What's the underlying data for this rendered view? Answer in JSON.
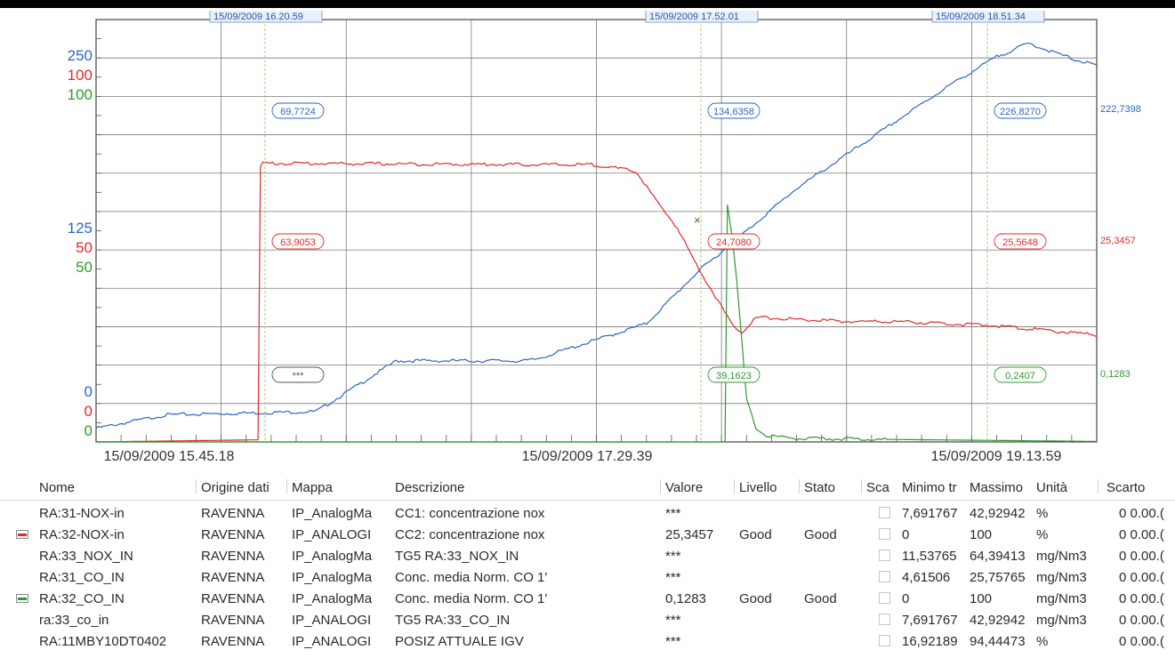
{
  "chart_data": {
    "type": "line",
    "title": "",
    "x_tick_labels": [
      "15/09/2009  15.45.18",
      "15/09/2009  17.29.39",
      "15/09/2009  19.13.59"
    ],
    "y_axes": [
      {
        "color": "#2a66c8",
        "top_label": "250",
        "mid_label": "125",
        "bottom_label": "0",
        "range": [
          0,
          250
        ]
      },
      {
        "color": "#e02a2a",
        "top_label": "100",
        "mid_label": "50",
        "bottom_label": "0",
        "range": [
          0,
          100
        ]
      },
      {
        "color": "#2e9a2e",
        "top_label": "100",
        "mid_label": "50",
        "bottom_label": "0",
        "range": [
          0,
          100
        ]
      }
    ],
    "cursors": [
      {
        "label": "15/09/2009  16.20.59",
        "values": [
          "69,7724",
          "63,9053",
          "***"
        ]
      },
      {
        "label": "15/09/2009  17.52.01",
        "values": [
          "134,6358",
          "24,7080",
          "39,1623"
        ]
      },
      {
        "label": "15/09/2009  18.51.34",
        "values": [
          "226,8270",
          "25,5648",
          "0,2407"
        ]
      }
    ],
    "current_values": [
      "222,7398",
      "25,3457",
      "0,1283"
    ],
    "series": [
      {
        "name": "RA:31-NOX-in",
        "color": "#2a66c8",
        "axis": 0,
        "t": [
          0,
          0.07,
          0.22,
          0.3,
          0.43,
          0.44,
          0.55,
          0.6,
          0.65,
          0.7,
          0.75,
          0.8,
          0.85,
          0.9,
          0.932,
          0.95,
          0.98,
          1.0
        ],
        "y": [
          8,
          16,
          18,
          48,
          48,
          49,
          70,
          100,
          125,
          150,
          170,
          190,
          210,
          228,
          236,
          232,
          226,
          222.7
        ]
      },
      {
        "name": "RA:32-NOX-in",
        "color": "#e02a2a",
        "axis": 1,
        "t": [
          0,
          0.1633,
          0.1643,
          0.31,
          0.5,
          0.54,
          0.56,
          0.58,
          0.6,
          0.62,
          0.635,
          0.645,
          0.66,
          0.7,
          0.75,
          0.8,
          0.9,
          1.0
        ],
        "y": [
          0,
          0.5,
          66,
          65.8,
          65.6,
          64,
          57,
          51,
          42,
          34,
          28,
          26,
          29.5,
          29,
          28.5,
          28.5,
          27.5,
          25.3
        ]
      },
      {
        "name": "RA:32_CO_IN",
        "color": "#2e9a2e",
        "axis": 2,
        "t": [
          0,
          0.629,
          0.63,
          0.636,
          0.64,
          0.65,
          0.66,
          0.67,
          0.7,
          1.0
        ],
        "y": [
          0,
          0,
          58,
          48,
          39,
          10,
          3,
          1.5,
          0.8,
          0.13
        ]
      }
    ]
  },
  "table": {
    "headers": [
      "Nome",
      "Origine dati",
      "Mappa",
      "Descrizione",
      "Valore",
      "Livello",
      "Stato",
      "Sca",
      "Minimo tr",
      "Massimo",
      "Unità",
      "Scarto"
    ],
    "rows": [
      {
        "nome": "RA:31-NOX-in",
        "origine": "RAVENNA",
        "mappa": "IP_AnalogMa",
        "descrizione": "CC1: concentrazione nox",
        "valore": "***",
        "livello": "",
        "stato": "",
        "minimo": "7,691767",
        "massimo": "42,92942",
        "unita": "%",
        "scarto": "0  0.00.(",
        "swatch": ""
      },
      {
        "nome": "RA:32-NOX-in",
        "origine": "RAVENNA",
        "mappa": "IP_ANALOGI",
        "descrizione": "CC2: concentrazione nox",
        "valore": "25,3457",
        "livello": "Good",
        "stato": "Good",
        "minimo": "0",
        "massimo": "100",
        "unita": "%",
        "scarto": "0  0.00.(",
        "swatch": "#e02a2a"
      },
      {
        "nome": "RA:33_NOX_IN",
        "origine": "RAVENNA",
        "mappa": "IP_AnalogMa",
        "descrizione": "TG5 RA:33_NOX_IN",
        "valore": "***",
        "livello": "",
        "stato": "",
        "minimo": "11,53765",
        "massimo": "64,39413",
        "unita": "mg/Nm3",
        "scarto": "0  0.00.(",
        "swatch": ""
      },
      {
        "nome": "RA:31_CO_IN",
        "origine": "RAVENNA",
        "mappa": "IP_AnalogMa",
        "descrizione": "Conc. media Norm. CO 1'",
        "valore": "***",
        "livello": "",
        "stato": "",
        "minimo": "4,61506",
        "massimo": "25,75765",
        "unita": "mg/Nm3",
        "scarto": "0  0.00.(",
        "swatch": ""
      },
      {
        "nome": "RA:32_CO_IN",
        "origine": "RAVENNA",
        "mappa": "IP_AnalogMa",
        "descrizione": "Conc. media Norm. CO 1'",
        "valore": "0,1283",
        "livello": "Good",
        "stato": "Good",
        "minimo": "0",
        "massimo": "100",
        "unita": "mg/Nm3",
        "scarto": "0  0.00.(",
        "swatch": "#2e9a2e"
      },
      {
        "nome": "ra:33_co_in",
        "origine": "RAVENNA",
        "mappa": "IP_ANALOGI",
        "descrizione": "TG5 RA:33_CO_IN",
        "valore": "***",
        "livello": "",
        "stato": "",
        "minimo": "7,691767",
        "massimo": "42,92942",
        "unita": "mg/Nm3",
        "scarto": "0  0.00.(",
        "swatch": ""
      },
      {
        "nome": "RA:11MBY10DT0402",
        "origine": "RAVENNA",
        "mappa": "IP_ANALOGI",
        "descrizione": "POSIZ ATTUALE IGV",
        "valore": "***",
        "livello": "",
        "stato": "",
        "minimo": "16,92189",
        "massimo": "94,44473",
        "unita": "%",
        "scarto": "0  0.00.(",
        "swatch": ""
      }
    ]
  }
}
